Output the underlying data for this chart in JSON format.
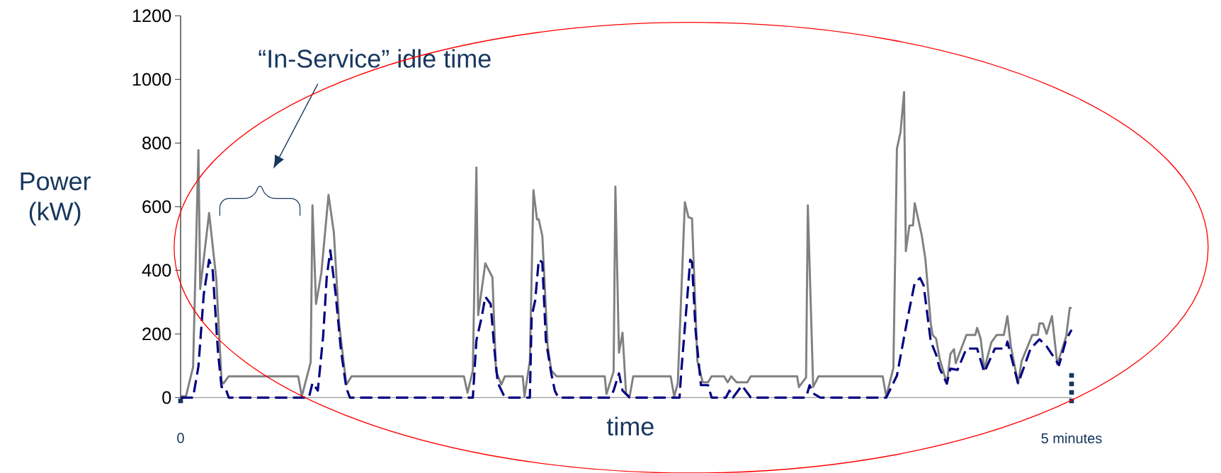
{
  "chart_data": {
    "type": "line",
    "xlabel": "time",
    "ylabel": "Power (kW)",
    "annotations": [
      "“In-Service” idle time"
    ],
    "xlim": [
      0,
      5
    ],
    "xticks": [
      0,
      {
        "value": 5,
        "label": "5 minutes"
      }
    ],
    "ylim": [
      0,
      1200
    ],
    "yticks": [
      0,
      200,
      400,
      600,
      800,
      1000,
      1200
    ],
    "series": [
      {
        "color": "#808080",
        "line_style": "solid",
        "x": [
          0,
          0.03,
          0.07,
          0.1,
          0.11,
          0.16,
          0.2,
          0.23,
          0.24,
          0.27,
          0.66,
          0.68,
          0.73,
          0.74,
          0.76,
          0.79,
          0.83,
          0.86,
          0.89,
          0.93,
          0.96,
          1.59,
          1.61,
          1.64,
          1.66,
          1.67,
          1.71,
          1.75,
          1.77,
          1.8,
          1.82,
          1.92,
          1.93,
          1.96,
          1.98,
          2.0,
          2.01,
          2.03,
          2.06,
          2.08,
          2.11,
          2.38,
          2.39,
          2.43,
          2.44,
          2.46,
          2.48,
          2.5,
          2.52,
          2.54,
          2.75,
          2.77,
          2.79,
          2.83,
          2.85,
          2.87,
          2.9,
          2.93,
          2.96,
          2.98,
          3.05,
          3.07,
          3.09,
          3.12,
          3.18,
          3.2,
          3.46,
          3.47,
          3.51,
          3.52,
          3.55,
          3.58,
          3.94,
          3.96,
          4.0,
          4.02,
          4.04,
          4.06,
          4.07,
          4.09,
          4.11,
          4.12,
          4.16,
          4.18,
          4.21,
          4.22,
          4.24,
          4.26,
          4.3,
          4.32,
          4.34,
          4.35,
          4.41,
          4.46,
          4.47,
          4.49,
          4.51,
          4.55,
          4.58,
          4.62,
          4.64,
          4.66,
          4.7,
          4.72,
          4.78,
          4.81,
          4.82,
          4.84,
          4.86,
          4.89,
          4.92,
          4.97,
          4.99,
          5.0
        ],
        "values": [
          4,
          4,
          96,
          778,
          341,
          580,
          374,
          52,
          44,
          67,
          67,
          4,
          111,
          604,
          294,
          393,
          637,
          519,
          230,
          41,
          67,
          67,
          15,
          85,
          723,
          259,
          422,
          378,
          82,
          41,
          67,
          67,
          4,
          115,
          652,
          560,
          560,
          508,
          163,
          85,
          67,
          67,
          11,
          82,
          663,
          141,
          204,
          11,
          4,
          67,
          67,
          4,
          44,
          614,
          567,
          563,
          115,
          48,
          48,
          67,
          67,
          48,
          67,
          48,
          48,
          67,
          67,
          33,
          63,
          604,
          33,
          67,
          67,
          4,
          93,
          782,
          834,
          960,
          460,
          541,
          541,
          611,
          508,
          434,
          233,
          197,
          185,
          122,
          44,
          137,
          152,
          108,
          197,
          197,
          219,
          185,
          89,
          174,
          197,
          197,
          256,
          159,
          44,
          115,
          197,
          197,
          233,
          233,
          200,
          256,
          104,
          193,
          282,
          282
        ]
      },
      {
        "color": "#000080",
        "line_style": "dashed",
        "x": [
          0,
          0.07,
          0.1,
          0.13,
          0.16,
          0.18,
          0.21,
          0.23,
          0.25,
          0.27,
          0.72,
          0.74,
          0.77,
          0.8,
          0.82,
          0.84,
          0.87,
          0.9,
          0.93,
          0.95,
          1.61,
          1.64,
          1.66,
          1.69,
          1.71,
          1.74,
          1.76,
          1.78,
          1.82,
          1.96,
          1.97,
          1.99,
          2.01,
          2.03,
          2.05,
          2.08,
          2.1,
          2.12,
          2.41,
          2.43,
          2.46,
          2.48,
          2.52,
          2.8,
          2.81,
          2.84,
          2.86,
          2.87,
          2.89,
          2.92,
          2.96,
          2.98,
          3.06,
          3.08,
          3.1,
          3.15,
          3.2,
          3.51,
          3.53,
          3.55,
          3.59,
          3.96,
          4.02,
          4.08,
          4.12,
          4.15,
          4.17,
          4.21,
          4.24,
          4.26,
          4.3,
          4.32,
          4.36,
          4.41,
          4.47,
          4.51,
          4.57,
          4.63,
          4.64,
          4.7,
          4.77,
          4.82,
          4.86,
          4.93,
          4.97,
          5.0
        ],
        "values": [
          0,
          0,
          98,
          325,
          433,
          400,
          141,
          33,
          33,
          0,
          0,
          46,
          22,
          193,
          378,
          463,
          326,
          148,
          30,
          0,
          0,
          0,
          180,
          254,
          317,
          294,
          157,
          46,
          0,
          0,
          254,
          306,
          433,
          425,
          180,
          76,
          22,
          0,
          0,
          22,
          76,
          22,
          0,
          0,
          83,
          291,
          433,
          425,
          211,
          39,
          39,
          0,
          0,
          22,
          0,
          38,
          0,
          0,
          39,
          13,
          0,
          0,
          69,
          250,
          361,
          376,
          352,
          176,
          135,
          91,
          44,
          91,
          87,
          154,
          154,
          80,
          154,
          154,
          176,
          44,
          154,
          183,
          161,
          102,
          183,
          213
        ]
      }
    ]
  }
}
